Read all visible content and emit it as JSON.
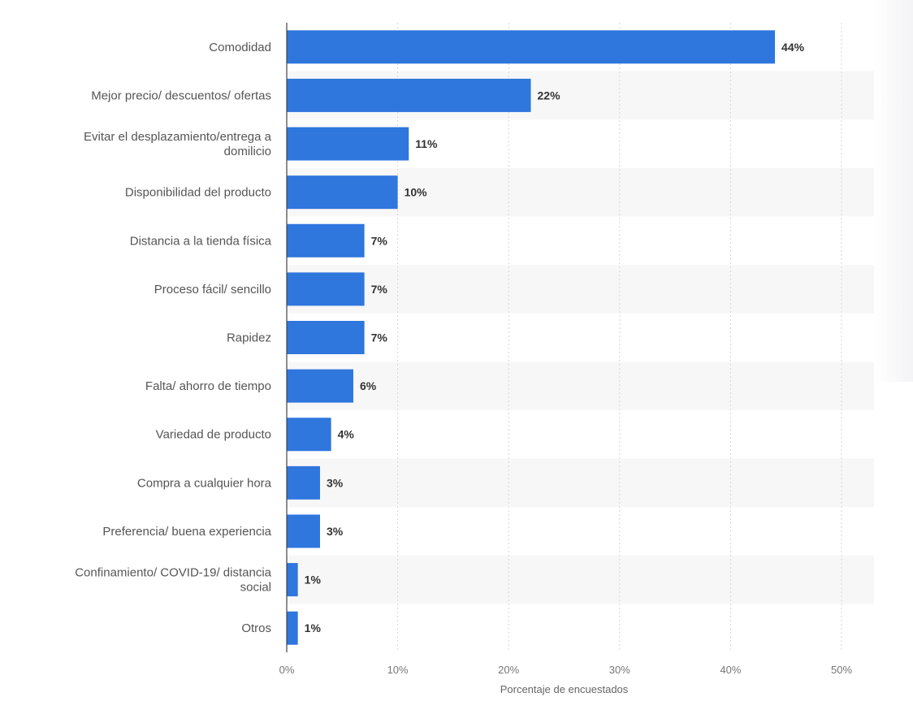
{
  "chart_data": {
    "type": "bar",
    "orientation": "horizontal",
    "categories": [
      "Comodidad",
      "Mejor precio/ descuentos/ ofertas",
      "Evitar el desplazamiento/entrega a domilicio",
      "Disponibilidad del producto",
      "Distancia a la tienda física",
      "Proceso fácil/ sencillo",
      "Rapidez",
      "Falta/ ahorro de tiempo",
      "Variedad de producto",
      "Compra a cualquier hora",
      "Preferencia/ buena experiencia",
      "Confinamiento/ COVID-19/ distancia social",
      "Otros"
    ],
    "category_lines": [
      [
        "Comodidad"
      ],
      [
        "Mejor precio/ descuentos/ ofertas"
      ],
      [
        "Evitar el desplazamiento/entrega a",
        "domilicio"
      ],
      [
        "Disponibilidad del producto"
      ],
      [
        "Distancia a la tienda física"
      ],
      [
        "Proceso fácil/ sencillo"
      ],
      [
        "Rapidez"
      ],
      [
        "Falta/ ahorro de tiempo"
      ],
      [
        "Variedad de producto"
      ],
      [
        "Compra a cualquier hora"
      ],
      [
        "Preferencia/ buena experiencia"
      ],
      [
        "Confinamiento/ COVID-19/ distancia",
        "social"
      ],
      [
        "Otros"
      ]
    ],
    "values": [
      44,
      22,
      11,
      10,
      7,
      7,
      7,
      6,
      4,
      3,
      3,
      1,
      1
    ],
    "value_labels": [
      "44%",
      "22%",
      "11%",
      "10%",
      "7%",
      "7%",
      "7%",
      "6%",
      "4%",
      "3%",
      "3%",
      "1%",
      "1%"
    ],
    "xlim": [
      0,
      50
    ],
    "xticks": [
      0,
      10,
      20,
      30,
      40,
      50
    ],
    "xtick_labels": [
      "0%",
      "10%",
      "20%",
      "30%",
      "40%",
      "50%"
    ],
    "xlabel": "Porcentaje de encuestados",
    "ylabel": "",
    "title": "",
    "grid": "vertical-dashed",
    "bar_color": "#2f76dd",
    "stripe_color": "#f7f7f7"
  }
}
